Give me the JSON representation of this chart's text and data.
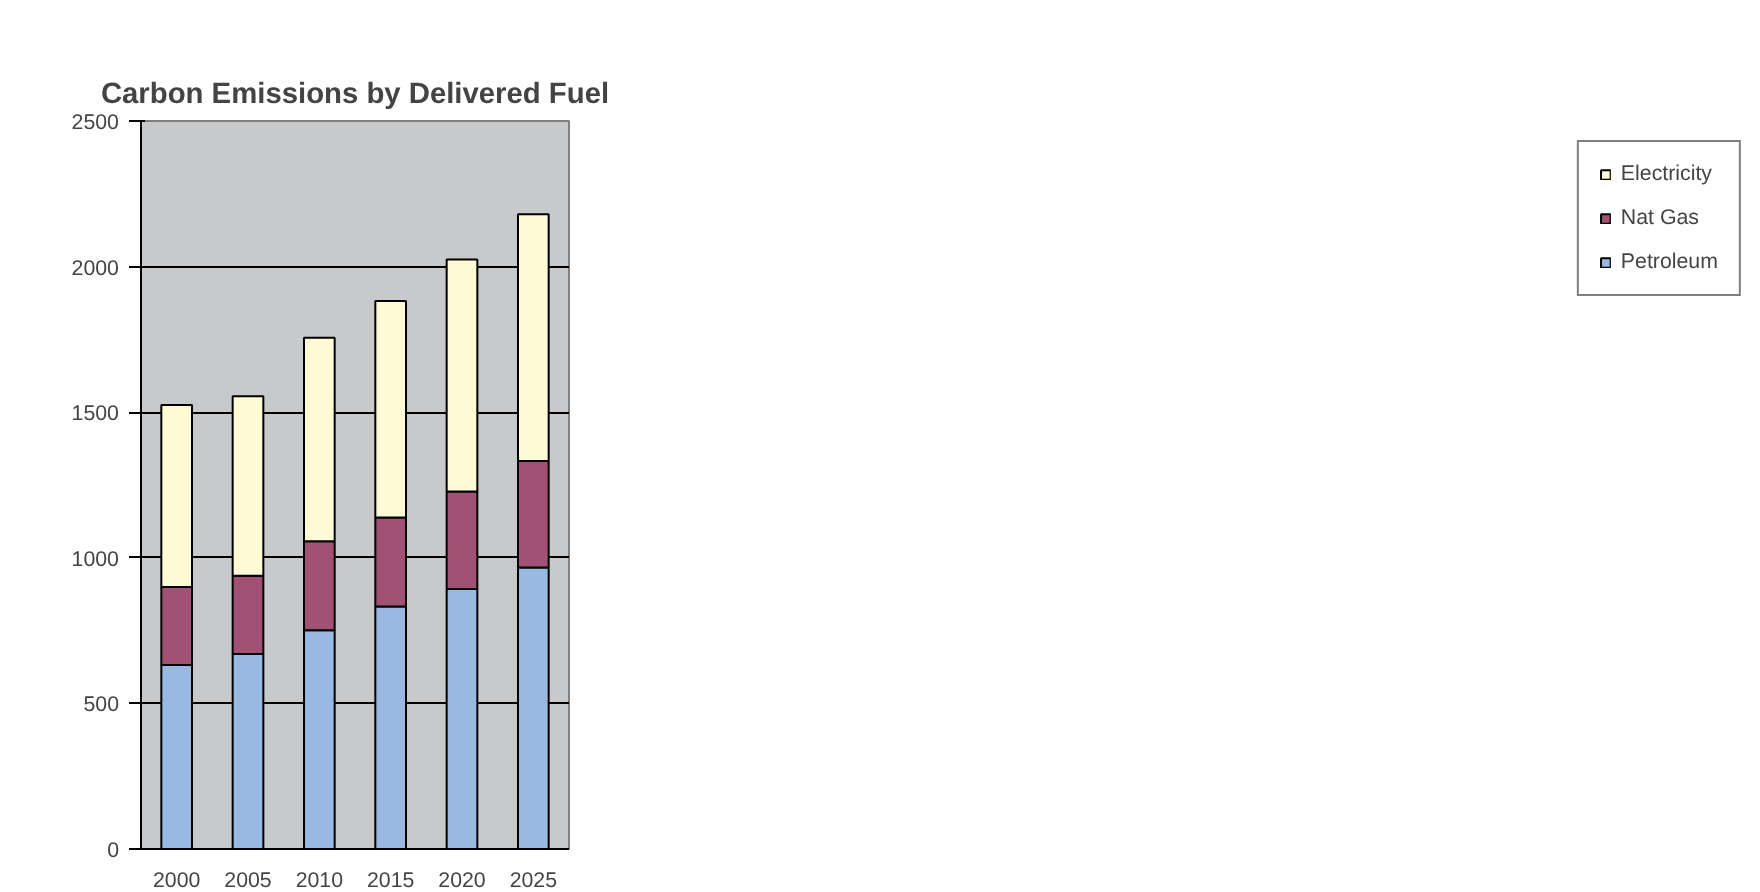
{
  "chart_data": {
    "type": "bar",
    "title": "Carbon Emissions by Delivered Fuel",
    "stacked": true,
    "categories": [
      "2000",
      "2005",
      "2010",
      "2015",
      "2020",
      "2025"
    ],
    "series": [
      {
        "name": "Petroleum",
        "color": "#99b8e2",
        "values": [
          632,
          670,
          751,
          833,
          893,
          967
        ]
      },
      {
        "name": "Nat Gas",
        "color": "#a05174",
        "values": [
          268,
          268,
          306,
          305,
          335,
          365
        ]
      },
      {
        "name": "Electricity",
        "color": "#fffad6",
        "values": [
          625,
          617,
          699,
          744,
          796,
          848
        ]
      }
    ],
    "ylim": [
      0,
      2500
    ],
    "yticks": [
      0,
      500,
      1000,
      1500,
      2000,
      2500
    ],
    "grid": "y",
    "legend": "right"
  }
}
